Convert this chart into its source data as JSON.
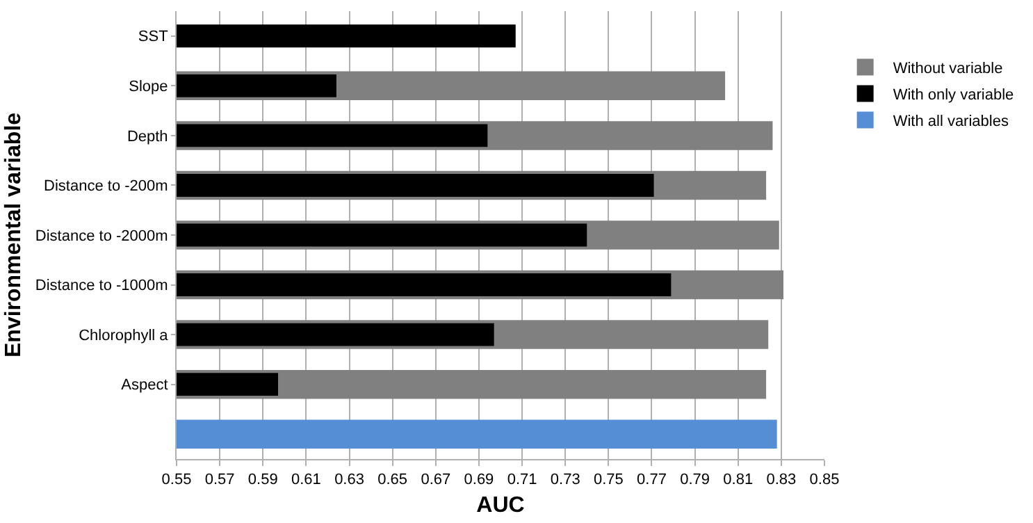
{
  "chart_data": {
    "type": "bar",
    "orientation": "horizontal",
    "xlabel": "AUC",
    "ylabel": "Environmental variable",
    "categories": [
      "SST",
      "Slope",
      "Depth",
      "Distance to -200m",
      "Distance to -2000m",
      "Distance to -1000m",
      "Chlorophyll a",
      "Aspect",
      null
    ],
    "series": [
      {
        "name": "Without variable",
        "color": "#808080",
        "values": [
          null,
          0.804,
          0.826,
          0.823,
          0.829,
          0.831,
          0.824,
          0.823,
          null
        ]
      },
      {
        "name": "With only variable",
        "color": "#000000",
        "values": [
          0.707,
          0.624,
          0.694,
          0.771,
          0.74,
          0.779,
          0.697,
          0.597,
          null
        ]
      },
      {
        "name": "With all variables",
        "color": "#558ed5",
        "values": [
          null,
          null,
          null,
          null,
          null,
          null,
          null,
          null,
          0.828
        ]
      }
    ],
    "xlim": [
      0.55,
      0.85
    ],
    "xticks": [
      0.55,
      0.57,
      0.59,
      0.61,
      0.63,
      0.65,
      0.67,
      0.69,
      0.71,
      0.73,
      0.75,
      0.77,
      0.79,
      0.81,
      0.83,
      0.85
    ],
    "grid": "x",
    "legend": "right"
  }
}
